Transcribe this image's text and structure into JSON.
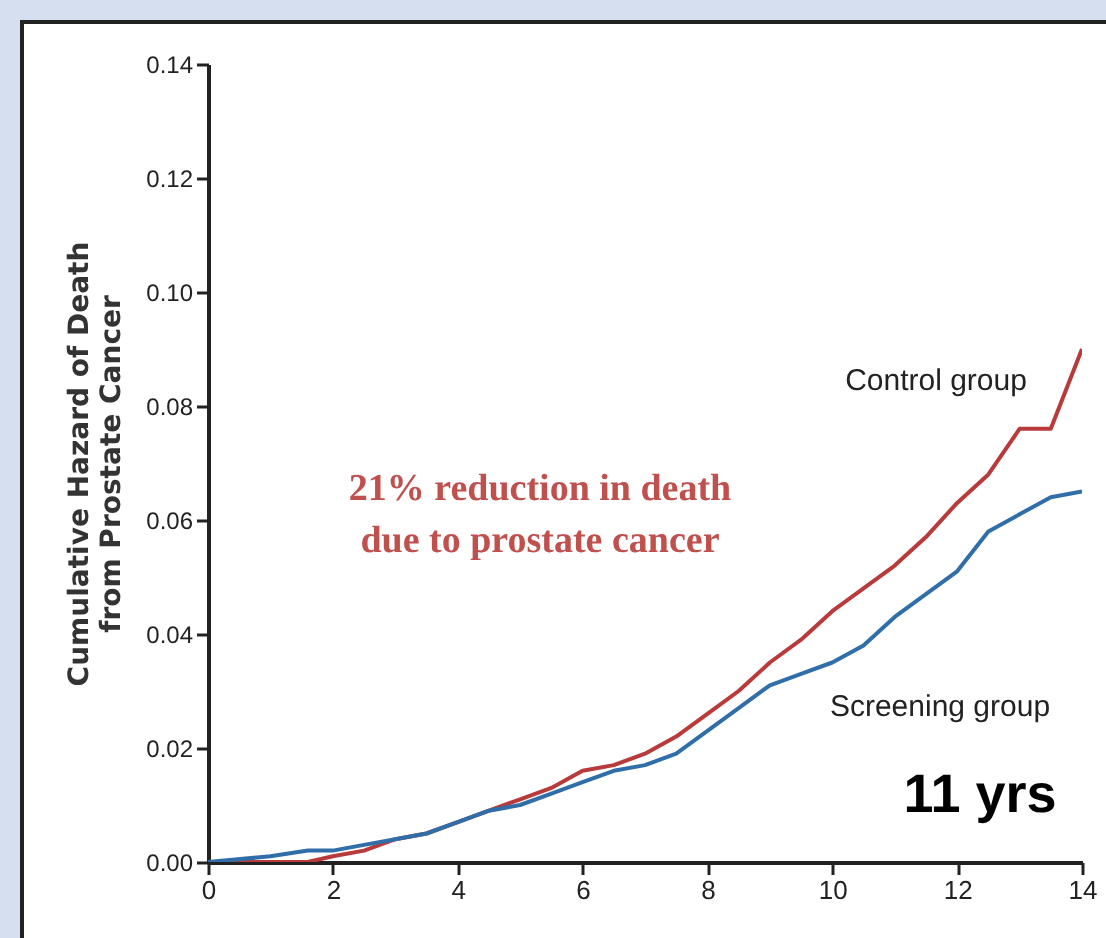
{
  "chart_data": {
    "type": "line",
    "ylabel": "Cumulative Hazard of Death\nfrom Prostate Cancer",
    "x": [
      0,
      1,
      1.6,
      2,
      2.5,
      3,
      3.5,
      4,
      4.5,
      5,
      5.5,
      6,
      6.5,
      7,
      7.5,
      8,
      8.5,
      9,
      9.5,
      10,
      10.5,
      11,
      11.5,
      12,
      12.5,
      13,
      13.5,
      14
    ],
    "series": [
      {
        "name": "Control group",
        "color": "#b83a3a",
        "values": [
          0,
          0,
          0,
          0.001,
          0.002,
          0.004,
          0.005,
          0.007,
          0.009,
          0.011,
          0.013,
          0.016,
          0.017,
          0.019,
          0.022,
          0.026,
          0.03,
          0.035,
          0.039,
          0.044,
          0.048,
          0.052,
          0.057,
          0.063,
          0.068,
          0.076,
          0.076,
          0.09
        ]
      },
      {
        "name": "Screening group",
        "color": "#2f6ea8",
        "values": [
          0,
          0.001,
          0.002,
          0.002,
          0.003,
          0.004,
          0.005,
          0.007,
          0.009,
          0.01,
          0.012,
          0.014,
          0.016,
          0.017,
          0.019,
          0.023,
          0.027,
          0.031,
          0.033,
          0.035,
          0.038,
          0.043,
          0.047,
          0.051,
          0.058,
          0.061,
          0.064,
          0.065
        ]
      }
    ],
    "xlim": [
      0,
      14
    ],
    "xticks": [
      0,
      2,
      4,
      6,
      8,
      10,
      12,
      14
    ],
    "ylim": [
      0,
      0.14
    ],
    "yticks": [
      {
        "value": 0,
        "label": "0.00"
      },
      {
        "value": 0.02,
        "label": "0.02"
      },
      {
        "value": 0.04,
        "label": "0.04"
      },
      {
        "value": 0.06,
        "label": "0.06"
      },
      {
        "value": 0.08,
        "label": "0.08"
      },
      {
        "value": 0.1,
        "label": "0.10"
      },
      {
        "value": 0.12,
        "label": "0.12"
      },
      {
        "value": 0.14,
        "label": "0.14"
      }
    ],
    "grid": false,
    "annotations": [
      "21% reduction in death\ndue to prostate cancer",
      "11 yrs"
    ]
  }
}
